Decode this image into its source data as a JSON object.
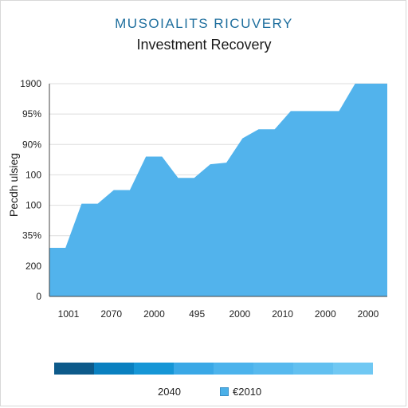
{
  "header": {
    "brand": "MUSOIALITS RICUVERY",
    "title": "Investment Recovery"
  },
  "colors": {
    "brand": "#1f6f9e",
    "area_fill": "#52b3ec",
    "legend_gradient": [
      "#0d5a8a",
      "#0a80c0",
      "#1696d6",
      "#3aa8e6",
      "#4cb3ec",
      "#57b9ee",
      "#62c0f0",
      "#70c8f3"
    ]
  },
  "chart_data": {
    "type": "area",
    "title": "Investment Recovery",
    "ylabel": "Pecdh ulsieg",
    "xlabel": "",
    "y_tick_labels": [
      "1900",
      "95%",
      "90%",
      "100",
      "100",
      "35%",
      "200",
      "0"
    ],
    "x_tick_labels": [
      "1001",
      "2070",
      "2000",
      "495",
      "2000",
      "2010",
      "2000",
      "2000"
    ],
    "ylim": [
      0,
      7
    ],
    "xlim": [
      0,
      21
    ],
    "grid": true,
    "series": [
      {
        "x": [
          0,
          1,
          2,
          3,
          4,
          5,
          6,
          7,
          8,
          9,
          10,
          11,
          12,
          13,
          14,
          15,
          16,
          17,
          18,
          19,
          20,
          21
        ],
        "y": [
          1.6,
          1.6,
          3.05,
          3.05,
          3.5,
          3.5,
          4.6,
          4.6,
          3.9,
          3.9,
          4.35,
          4.4,
          5.2,
          5.5,
          5.5,
          6.1,
          6.1,
          6.1,
          6.1,
          7.0,
          7.0,
          7.0
        ]
      }
    ]
  },
  "legend": {
    "year_label": "2040",
    "series_label": "€2010"
  }
}
